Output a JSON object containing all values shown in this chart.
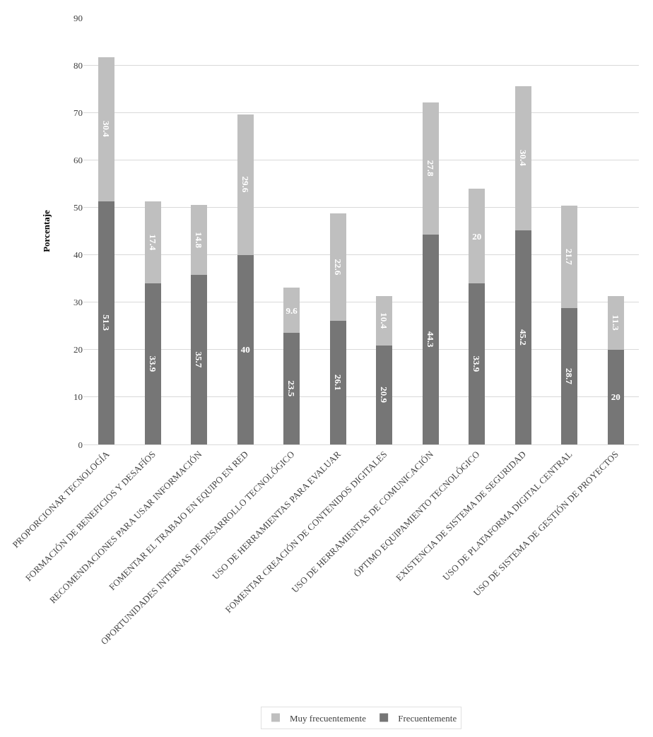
{
  "chart_data": {
    "type": "bar",
    "stacked": true,
    "ylabel": "Porcentaje",
    "categories": [
      "PROPORCIONAR TECNOLOGÍA",
      "FORMACIÓN DE BENEFICIOS Y DESAFÍOS",
      "RECOMENDACIONES PARA USAR INFORMACIÓN",
      "FOMENTAR EL TRABAJO EN EQUIPO EN RED",
      "OPORTUNIDADES INTERNAS DE DESARROLLO TECNOLÓGICO",
      "USO DE HERRAMIENTAS PARA EVALUAR",
      "FOMENTAR CREACIÓN DE CONTENIDOS DIGITALES",
      "USO DE HERRAMIENTAS DE COMUNICACIÓN",
      "ÓPTIMO EQUIPAMIENTO TECNOLÓGICO",
      "EXISTENCIA DE SISTEMA DE SEGURIDAD",
      "USO DE PLATAFORMA DIGITAL CENTRAL",
      "USO DE SISTEMA DE GESTIÓN DE PROYECTOS"
    ],
    "series": [
      {
        "name": "Frecuentemente",
        "color": "#767676",
        "values": [
          51.3,
          33.9,
          35.7,
          40,
          23.5,
          26.1,
          20.9,
          44.3,
          33.9,
          45.2,
          28.7,
          20
        ]
      },
      {
        "name": "Muy frecuentemente",
        "color": "#bfbfbf",
        "values": [
          30.4,
          17.4,
          14.8,
          29.6,
          9.6,
          22.6,
          10.4,
          27.8,
          20,
          30.4,
          21.7,
          11.3
        ]
      }
    ],
    "ylim": [
      0,
      90
    ],
    "yticks": [
      0,
      10,
      20,
      30,
      40,
      50,
      60,
      70,
      80,
      90
    ],
    "grid": "y",
    "legend": "bottom",
    "data_labels": true
  }
}
